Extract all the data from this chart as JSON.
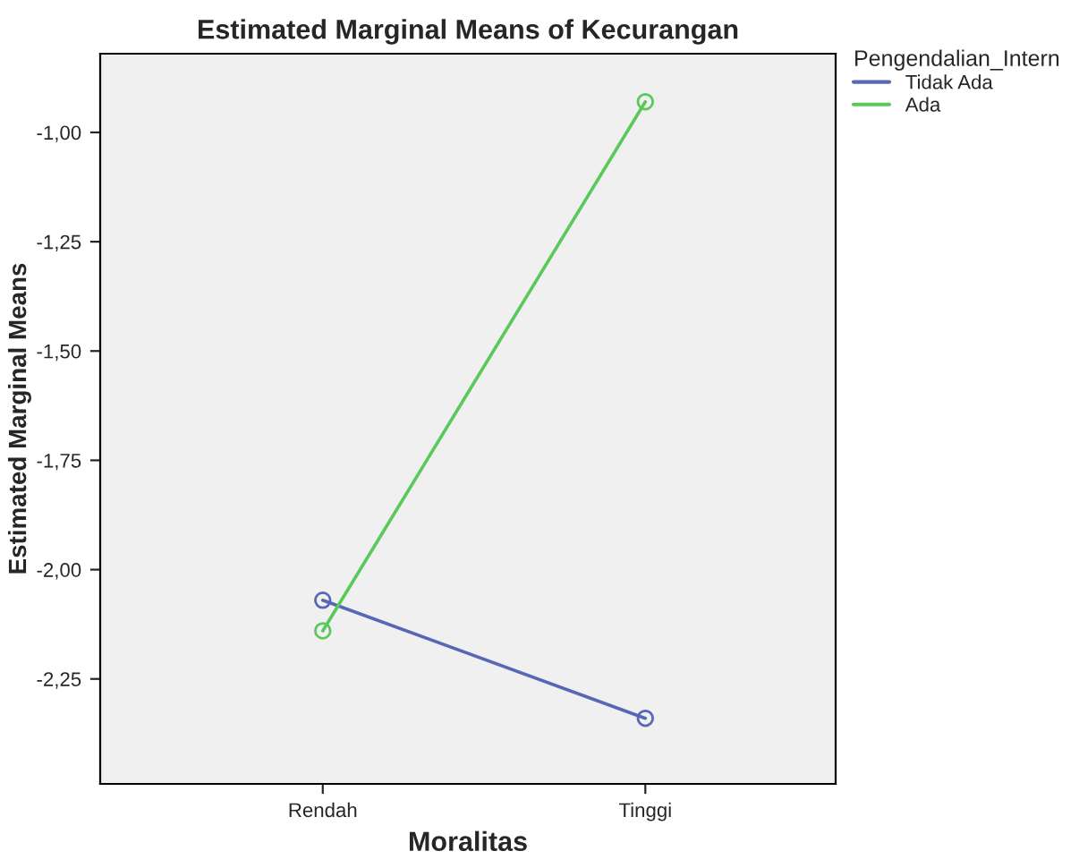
{
  "chart_data": {
    "type": "line",
    "title": "Estimated Marginal Means of Kecurangan",
    "xlabel": "Moralitas",
    "ylabel": "Estimated Marginal Means",
    "legend_title": "Pengendalian_Intern",
    "categories": [
      "Rendah",
      "Tinggi"
    ],
    "series": [
      {
        "name": "Tidak Ada",
        "color": "#5866b5",
        "values": [
          -2.07,
          -2.34
        ]
      },
      {
        "name": "Ada",
        "color": "#5bc85b",
        "values": [
          -2.14,
          -0.93
        ]
      }
    ],
    "ylim": [
      -2.49,
      -0.82
    ],
    "yticks": [
      {
        "value": -2.25,
        "label": "-2,25"
      },
      {
        "value": -2.0,
        "label": "-2,00"
      },
      {
        "value": -1.75,
        "label": "-1,75"
      },
      {
        "value": -1.5,
        "label": "-1,50"
      },
      {
        "value": -1.25,
        "label": "-1,25"
      },
      {
        "value": -1.0,
        "label": "-1,00"
      }
    ],
    "marker": "circle",
    "line_style": "solid",
    "legend": "top right",
    "grid": false
  }
}
